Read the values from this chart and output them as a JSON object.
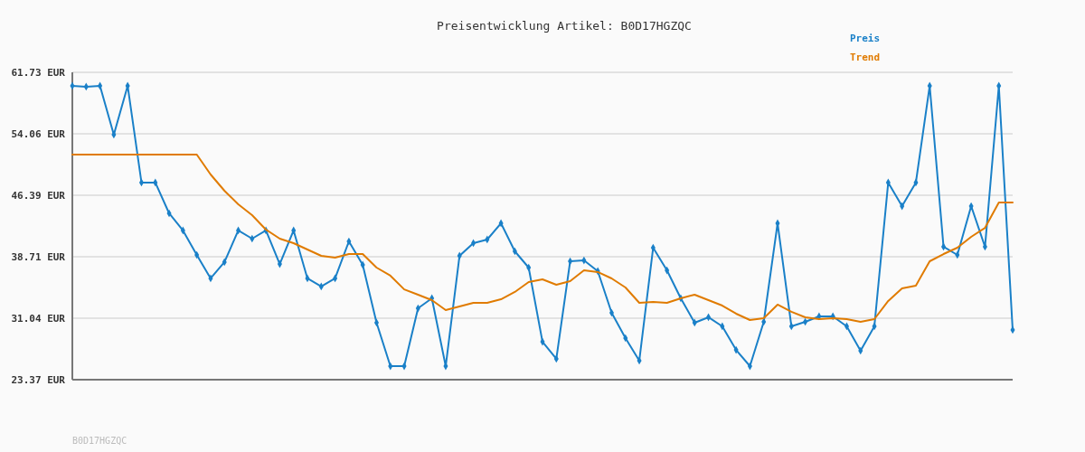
{
  "chart_data": {
    "type": "line",
    "title": "Preisentwicklung Artikel: B0D17HGZQC",
    "categories": [
      null,
      null,
      null,
      null,
      null,
      null,
      null,
      null,
      null,
      null,
      null,
      null,
      null,
      null,
      null,
      null,
      null,
      null,
      null,
      null,
      null,
      null,
      null,
      null,
      null,
      null,
      null,
      null,
      null,
      null,
      null,
      null,
      null,
      null,
      null,
      null,
      null,
      null,
      null,
      null,
      null,
      null,
      null,
      null,
      null,
      null,
      null,
      null,
      null,
      null,
      null,
      null,
      null,
      null,
      null,
      null,
      null,
      null,
      null,
      null,
      null,
      null,
      null,
      null,
      null,
      null,
      null,
      null,
      null
    ],
    "series": [
      {
        "name": "Preis",
        "color": "#1a80c8",
        "marker": "diamond",
        "values": [
          60.04,
          59.93,
          60.04,
          53.95,
          60.04,
          47.97,
          47.97,
          44.13,
          41.99,
          38.94,
          36.01,
          38.04,
          41.99,
          40.97,
          41.99,
          37.81,
          41.99,
          36.01,
          35.0,
          36.01,
          40.63,
          37.7,
          30.48,
          25.06,
          25.06,
          32.28,
          33.53,
          25.06,
          38.83,
          40.41,
          40.86,
          42.89,
          39.39,
          37.36,
          28.1,
          25.97,
          38.15,
          38.26,
          36.91,
          31.72,
          28.56,
          25.74,
          39.84,
          37.02,
          33.53,
          30.48,
          31.16,
          30.03,
          27.09,
          25.06,
          30.59,
          42.89,
          30.03,
          30.59,
          31.27,
          31.27,
          30.03,
          26.98,
          30.03,
          47.97,
          45.03,
          47.97,
          60.04,
          39.96,
          38.94,
          45.03,
          39.96,
          60.04,
          29.58
        ]
      },
      {
        "name": "Trend",
        "color": "#e07b00",
        "marker": "none",
        "values": [
          51.46,
          51.46,
          51.46,
          51.46,
          51.46,
          51.46,
          51.46,
          51.46,
          51.46,
          51.46,
          48.98,
          46.95,
          45.26,
          43.91,
          42.1,
          40.97,
          40.41,
          39.62,
          38.83,
          38.6,
          39.05,
          39.05,
          37.36,
          36.35,
          34.64,
          33.98,
          33.3,
          32.06,
          32.51,
          32.96,
          32.96,
          33.41,
          34.32,
          35.56,
          35.89,
          35.22,
          35.67,
          37.02,
          36.8,
          36.01,
          34.88,
          32.96,
          33.07,
          32.96,
          33.53,
          33.98,
          33.3,
          32.62,
          31.61,
          30.82,
          31.04,
          32.74,
          31.84,
          31.16,
          30.93,
          31.04,
          30.93,
          30.59,
          30.93,
          33.19,
          34.77,
          35.11,
          38.15,
          39.05,
          39.84,
          41.2,
          42.32,
          45.48,
          45.48
        ]
      }
    ],
    "ylim": [
      23.37,
      61.73
    ],
    "yticks": [
      {
        "value": 23.37,
        "label": "23.37 EUR"
      },
      {
        "value": 31.04,
        "label": "31.04 EUR"
      },
      {
        "value": 38.71,
        "label": "38.71 EUR"
      },
      {
        "value": 46.39,
        "label": "46.39 EUR"
      },
      {
        "value": 54.06,
        "label": "54.06 EUR"
      },
      {
        "value": 61.73,
        "label": "61.73 EUR"
      }
    ],
    "grid": "y",
    "legend": "top right",
    "line_style": "solid",
    "annotations": [
      "B0D17HGZQC"
    ]
  }
}
